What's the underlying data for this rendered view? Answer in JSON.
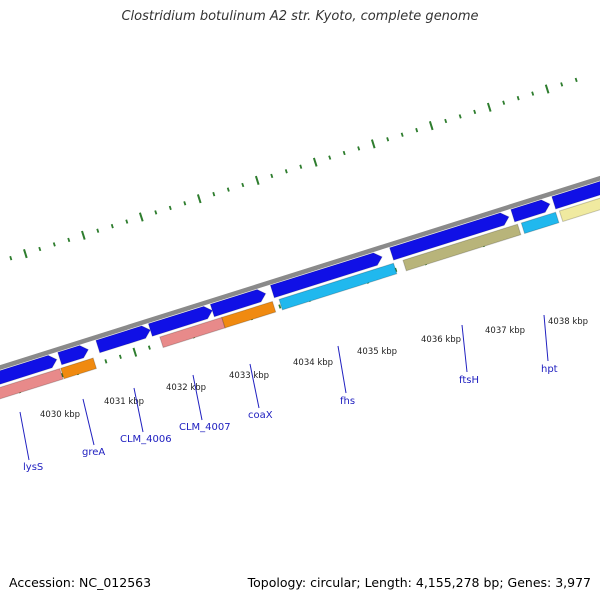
{
  "title": "Clostridium botulinum A2 str. Kyoto, complete genome",
  "accession": "Accession: NC_012563",
  "topology": "Topology: circular; Length: 4,155,278 bp; Genes: 3,977",
  "kbp_labels": [
    "4030 kbp",
    "4031 kbp",
    "4032 kbp",
    "4033 kbp",
    "4034 kbp",
    "4035 kbp",
    "4036 kbp",
    "4037 kbp",
    "4038 kbp"
  ],
  "gene_labels": [
    "lysS",
    "greA",
    "CLM_4006",
    "CLM_4007",
    "coaX",
    "fhs",
    "ftsH",
    "hpt"
  ],
  "colors": {
    "backbone": "#8a8a8a",
    "cds": "#1010e6",
    "tick": "#2e7d2e",
    "label_link": "#2020c0",
    "pink": "#e88a8a",
    "orange": "#f08a10",
    "cyan": "#20b8ee",
    "olive": "#b8b47a",
    "light_yellow": "#f0eaa0"
  }
}
